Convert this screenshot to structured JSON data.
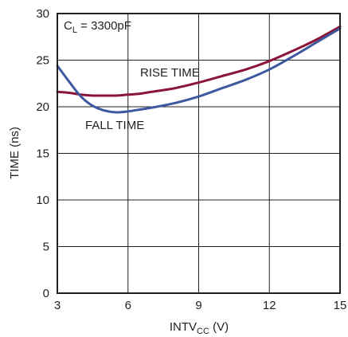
{
  "chart_data": {
    "type": "line",
    "xlabel": {
      "main": "INTV",
      "sub": "CC",
      "unit": " (V)"
    },
    "ylabel": "TIME (ns)",
    "xlim": [
      3,
      15
    ],
    "ylim": [
      0,
      30
    ],
    "xticks": [
      3,
      6,
      9,
      12,
      15
    ],
    "yticks": [
      0,
      5,
      10,
      15,
      20,
      25,
      30
    ],
    "grid": true,
    "colors": {
      "rise": "#8a1538",
      "fall": "#3e58a0",
      "grid": "#231f20",
      "frame": "#231f20"
    },
    "condition_label": {
      "main": "C",
      "sub": "L",
      "rest": " = 3300pF"
    },
    "annotations": {
      "rise": "RISE TIME",
      "fall": "FALL TIME"
    },
    "series": [
      {
        "name": "RISE TIME",
        "x": [
          3,
          3.5,
          4,
          4.5,
          5,
          5.5,
          6,
          6.5,
          7,
          8,
          9,
          10,
          11,
          12,
          13,
          14,
          15
        ],
        "y": [
          21.6,
          21.5,
          21.3,
          21.2,
          21.2,
          21.2,
          21.3,
          21.4,
          21.6,
          22.0,
          22.6,
          23.3,
          24.0,
          24.9,
          26.0,
          27.2,
          28.6
        ]
      },
      {
        "name": "FALL TIME",
        "x": [
          3,
          3.5,
          4,
          4.5,
          5,
          5.5,
          6,
          6.5,
          7,
          8,
          9,
          10,
          11,
          12,
          13,
          14,
          15
        ],
        "y": [
          24.4,
          22.7,
          21.1,
          20.1,
          19.6,
          19.4,
          19.5,
          19.7,
          19.9,
          20.4,
          21.1,
          22.0,
          22.9,
          24.0,
          25.4,
          26.9,
          28.4
        ]
      }
    ]
  }
}
